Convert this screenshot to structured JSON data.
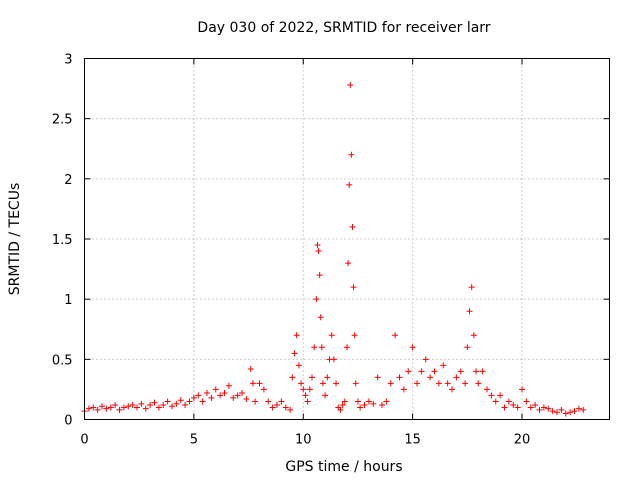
{
  "chart_data": {
    "type": "scatter",
    "title": "Day 030 of 2022, SRMTID for receiver larr",
    "xlabel": "GPS time / hours",
    "ylabel": "SRMTID / TECUs",
    "xlim": [
      0,
      24
    ],
    "ylim": [
      0,
      3
    ],
    "xticks": [
      0,
      5,
      10,
      15,
      20
    ],
    "xtick_labels": [
      "0",
      "5",
      "10",
      "15",
      "20"
    ],
    "yticks": [
      0,
      0.5,
      1,
      1.5,
      2,
      2.5,
      3
    ],
    "ytick_labels": [
      "0",
      "0.5",
      "1",
      "1.5",
      "2",
      "2.5",
      "3"
    ],
    "grid": true,
    "marker": "+",
    "color": "#ff0000",
    "series": [
      {
        "name": "SRMTID",
        "x": [
          0.0,
          0.2,
          0.4,
          0.6,
          0.8,
          1.0,
          1.2,
          1.4,
          1.6,
          1.8,
          2.0,
          2.2,
          2.4,
          2.6,
          2.8,
          3.0,
          3.2,
          3.4,
          3.6,
          3.8,
          4.0,
          4.2,
          4.4,
          4.6,
          4.8,
          5.0,
          5.2,
          5.4,
          5.6,
          5.8,
          6.0,
          6.2,
          6.4,
          6.6,
          6.8,
          7.0,
          7.2,
          7.4,
          7.6,
          7.7,
          7.8,
          8.0,
          8.2,
          8.4,
          8.6,
          8.8,
          9.0,
          9.2,
          9.4,
          9.5,
          9.6,
          9.7,
          9.8,
          9.9,
          10.0,
          10.1,
          10.2,
          10.3,
          10.4,
          10.5,
          10.6,
          10.65,
          10.7,
          10.75,
          10.8,
          10.85,
          10.9,
          11.0,
          11.1,
          11.2,
          11.3,
          11.4,
          11.5,
          11.6,
          11.7,
          11.8,
          11.9,
          12.0,
          12.05,
          12.1,
          12.15,
          12.2,
          12.25,
          12.3,
          12.35,
          12.4,
          12.5,
          12.6,
          12.8,
          13.0,
          13.2,
          13.4,
          13.6,
          13.8,
          14.0,
          14.2,
          14.4,
          14.6,
          14.8,
          15.0,
          15.2,
          15.4,
          15.6,
          15.8,
          16.0,
          16.2,
          16.4,
          16.6,
          16.8,
          17.0,
          17.2,
          17.4,
          17.5,
          17.6,
          17.7,
          17.8,
          17.9,
          18.0,
          18.2,
          18.4,
          18.6,
          18.8,
          19.0,
          19.2,
          19.4,
          19.6,
          19.8,
          20.0,
          20.2,
          20.4,
          20.6,
          20.8,
          21.0,
          21.2,
          21.4,
          21.6,
          21.8,
          22.0,
          22.2,
          22.4,
          22.6,
          22.8
        ],
        "y": [
          0.07,
          0.09,
          0.1,
          0.08,
          0.11,
          0.09,
          0.1,
          0.12,
          0.08,
          0.1,
          0.11,
          0.12,
          0.1,
          0.13,
          0.09,
          0.12,
          0.14,
          0.1,
          0.12,
          0.15,
          0.11,
          0.13,
          0.16,
          0.12,
          0.15,
          0.18,
          0.2,
          0.15,
          0.22,
          0.18,
          0.25,
          0.2,
          0.22,
          0.28,
          0.18,
          0.2,
          0.22,
          0.17,
          0.42,
          0.3,
          0.15,
          0.3,
          0.25,
          0.15,
          0.1,
          0.12,
          0.15,
          0.1,
          0.08,
          0.35,
          0.55,
          0.7,
          0.45,
          0.3,
          0.25,
          0.2,
          0.15,
          0.25,
          0.35,
          0.6,
          1.0,
          1.45,
          1.4,
          1.2,
          0.85,
          0.6,
          0.3,
          0.2,
          0.35,
          0.5,
          0.7,
          0.5,
          0.3,
          0.1,
          0.08,
          0.12,
          0.15,
          0.6,
          1.3,
          1.95,
          2.78,
          2.2,
          1.6,
          1.1,
          0.7,
          0.3,
          0.15,
          0.1,
          0.12,
          0.15,
          0.13,
          0.35,
          0.12,
          0.15,
          0.3,
          0.7,
          0.35,
          0.25,
          0.4,
          0.6,
          0.3,
          0.4,
          0.5,
          0.35,
          0.4,
          0.3,
          0.45,
          0.3,
          0.25,
          0.35,
          0.4,
          0.3,
          0.6,
          0.9,
          1.1,
          0.7,
          0.4,
          0.3,
          0.4,
          0.25,
          0.2,
          0.15,
          0.2,
          0.1,
          0.15,
          0.12,
          0.1,
          0.25,
          0.15,
          0.1,
          0.12,
          0.08,
          0.1,
          0.09,
          0.07,
          0.06,
          0.08,
          0.05,
          0.06,
          0.07,
          0.09,
          0.08
        ]
      }
    ]
  }
}
